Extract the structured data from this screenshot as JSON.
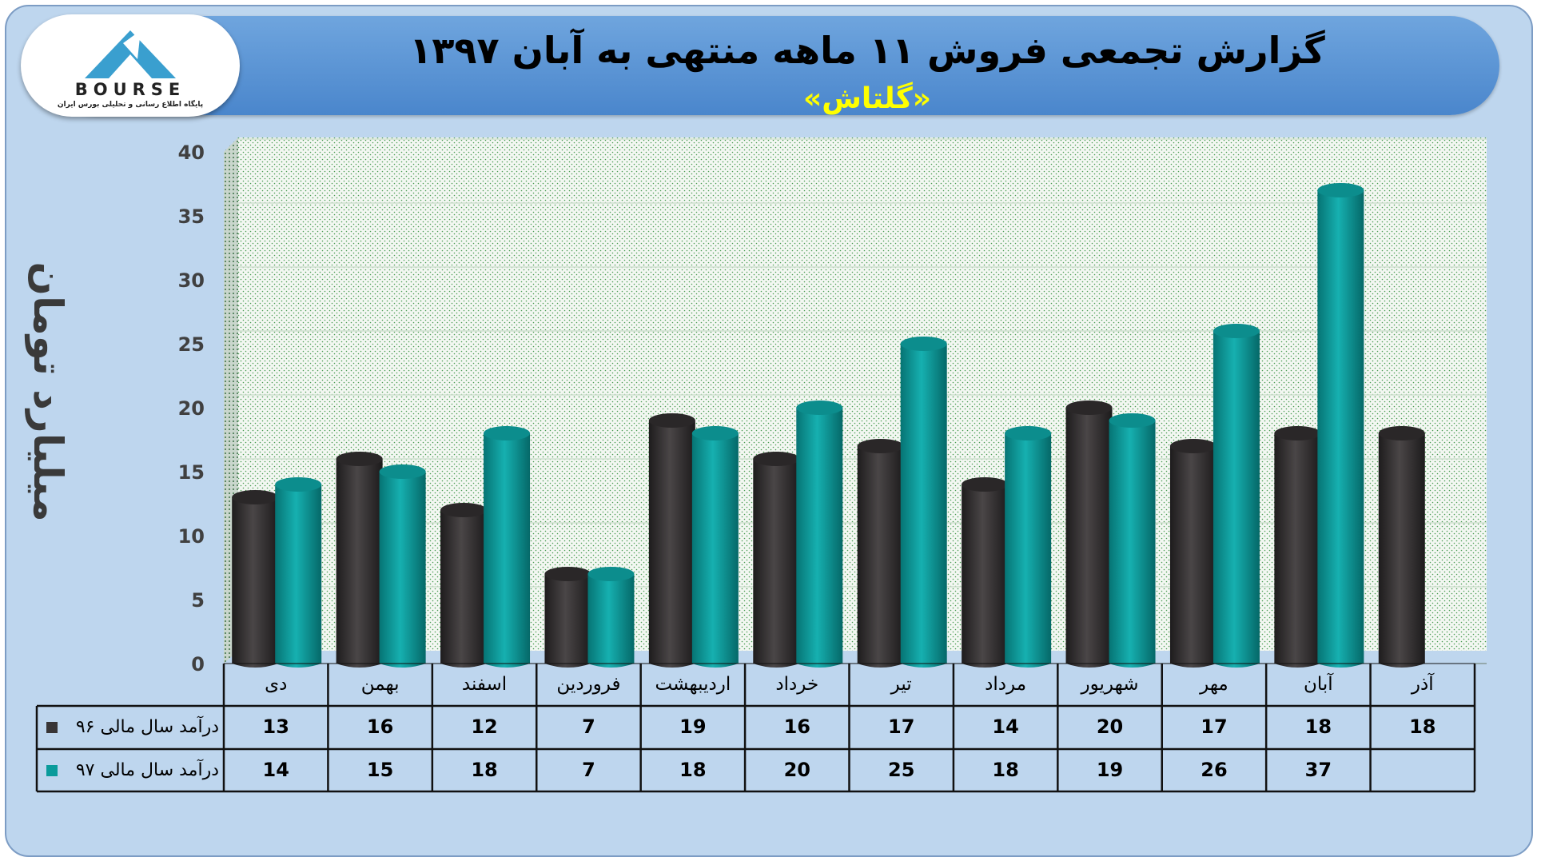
{
  "header": {
    "title": "گزارش تجمعی فروش ۱۱ ماهه منتهی به آبان ۱۳۹۷",
    "subtitle": "«گلتاش»"
  },
  "logo": {
    "word": "BOURSE",
    "caption": "پایگاه اطلاع رسانی و تحلیلی بورس ایران"
  },
  "colors": {
    "frame_bg": "#bed6ee",
    "banner": "#5b95d6",
    "series_96": "#383536",
    "series_97": "#0a9b9b",
    "subtitle": "#ffff00"
  },
  "chart_data": {
    "type": "bar",
    "ylabel": "میلیارد تومان",
    "ylim": [
      0,
      40
    ],
    "yticks": [
      0,
      5,
      10,
      15,
      20,
      25,
      30,
      35,
      40
    ],
    "grid": true,
    "categories": [
      "دی",
      "بهمن",
      "اسفند",
      "فروردین",
      "اردیبهشت",
      "خرداد",
      "تیر",
      "مرداد",
      "شهریور",
      "مهر",
      "آبان",
      "آذر"
    ],
    "series": [
      {
        "name": "درآمد سال مالی ۹۶",
        "values": [
          13,
          16,
          12,
          7,
          19,
          16,
          17,
          14,
          20,
          17,
          18,
          18
        ]
      },
      {
        "name": "درآمد سال مالی ۹۷",
        "values": [
          14,
          15,
          18,
          7,
          18,
          20,
          25,
          18,
          19,
          26,
          37,
          null
        ]
      }
    ]
  }
}
